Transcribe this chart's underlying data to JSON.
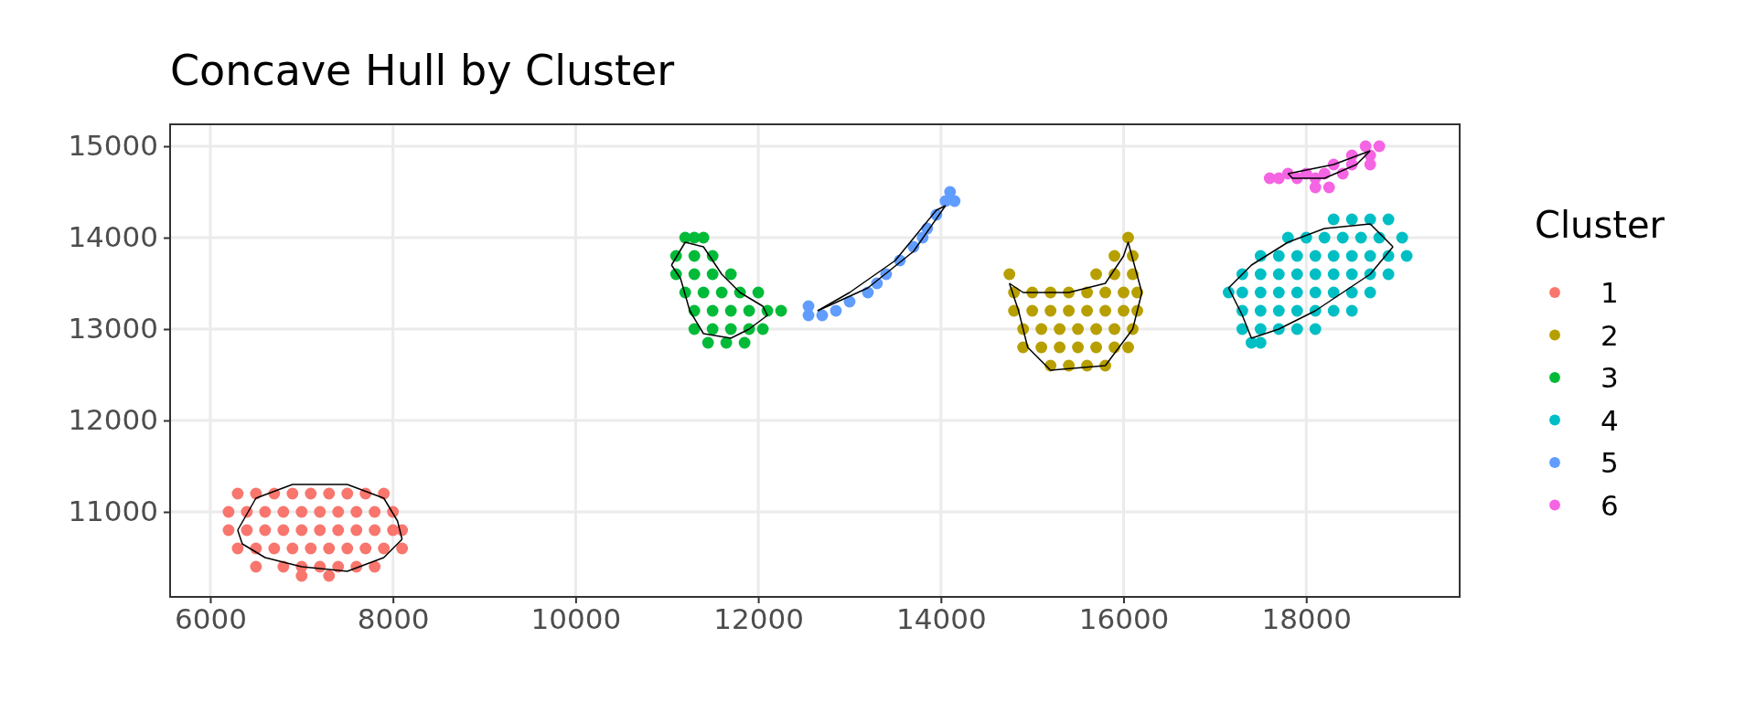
{
  "chart_data": {
    "type": "scatter",
    "title": "Concave Hull by Cluster",
    "legend_title": "Cluster",
    "legend": "right",
    "grid": true,
    "marker": "circle",
    "xlim": [
      5560,
      19680
    ],
    "ylim": [
      10070,
      15240
    ],
    "xticks": [
      6000,
      8000,
      10000,
      12000,
      14000,
      16000,
      18000
    ],
    "yticks": [
      11000,
      12000,
      13000,
      14000,
      15000
    ],
    "series": [
      {
        "name": "1",
        "color": "#f8766d",
        "x": [
          6300,
          6500,
          6700,
          6900,
          7100,
          7300,
          7500,
          7700,
          7900,
          6200,
          6400,
          6600,
          6800,
          7000,
          7200,
          7400,
          7600,
          7800,
          8000,
          6200,
          6400,
          6600,
          6800,
          7000,
          7200,
          7400,
          7600,
          7800,
          8000,
          8100,
          6300,
          6500,
          6700,
          6900,
          7100,
          7300,
          7500,
          7700,
          7900,
          8100,
          6500,
          6800,
          7000,
          7200,
          7400,
          7600,
          7800,
          7000,
          7300
        ],
        "values": [
          11200,
          11200,
          11200,
          11200,
          11200,
          11200,
          11200,
          11200,
          11200,
          11000,
          11000,
          11000,
          11000,
          11000,
          11000,
          11000,
          11000,
          11000,
          11000,
          10800,
          10800,
          10800,
          10800,
          10800,
          10800,
          10800,
          10800,
          10800,
          10800,
          10800,
          10600,
          10600,
          10600,
          10600,
          10600,
          10600,
          10600,
          10600,
          10600,
          10600,
          10400,
          10400,
          10400,
          10400,
          10400,
          10400,
          10400,
          10300,
          10300
        ]
      },
      {
        "name": "2",
        "color": "#b79f00",
        "x": [
          16050,
          15900,
          16100,
          14750,
          15700,
          15900,
          16100,
          14800,
          15000,
          15200,
          15400,
          15600,
          15800,
          16000,
          16150,
          14800,
          15000,
          15200,
          15400,
          15600,
          15800,
          16000,
          16150,
          14900,
          15100,
          15300,
          15500,
          15700,
          15900,
          16100,
          14900,
          15100,
          15300,
          15500,
          15700,
          15900,
          16050,
          15200,
          15400,
          15600,
          15800
        ],
        "values": [
          14000,
          13800,
          13800,
          13600,
          13600,
          13600,
          13600,
          13400,
          13400,
          13400,
          13400,
          13400,
          13400,
          13400,
          13400,
          13200,
          13200,
          13200,
          13200,
          13200,
          13200,
          13200,
          13200,
          13000,
          13000,
          13000,
          13000,
          13000,
          13000,
          13000,
          12800,
          12800,
          12800,
          12800,
          12800,
          12800,
          12800,
          12600,
          12600,
          12600,
          12600
        ]
      },
      {
        "name": "3",
        "color": "#00ba38",
        "x": [
          11200,
          11300,
          11400,
          11100,
          11300,
          11500,
          11100,
          11300,
          11500,
          11700,
          11200,
          11400,
          11600,
          11800,
          12000,
          11300,
          11500,
          11700,
          11900,
          12100,
          12250,
          11300,
          11500,
          11700,
          11900,
          12050,
          11450,
          11650,
          11850
        ],
        "values": [
          14000,
          14000,
          14000,
          13800,
          13800,
          13800,
          13600,
          13600,
          13600,
          13600,
          13400,
          13400,
          13400,
          13400,
          13400,
          13200,
          13200,
          13200,
          13200,
          13200,
          13200,
          13000,
          13000,
          13000,
          13000,
          13000,
          12850,
          12850,
          12850
        ]
      },
      {
        "name": "4",
        "color": "#00bfc4",
        "x": [
          18300,
          18500,
          18700,
          18900,
          17800,
          18000,
          18200,
          18400,
          18600,
          18800,
          19050,
          17500,
          17700,
          17900,
          18100,
          18300,
          18500,
          18700,
          18900,
          19100,
          17300,
          17500,
          17700,
          17900,
          18100,
          18300,
          18500,
          18700,
          18900,
          17150,
          17300,
          17500,
          17700,
          17900,
          18100,
          18300,
          18500,
          18700,
          17300,
          17500,
          17700,
          17900,
          18100,
          18300,
          18500,
          17300,
          17500,
          17700,
          17900,
          18100,
          17400,
          17500
        ],
        "values": [
          14200,
          14200,
          14200,
          14200,
          14000,
          14000,
          14000,
          14000,
          14000,
          14000,
          14000,
          13800,
          13800,
          13800,
          13800,
          13800,
          13800,
          13800,
          13800,
          13800,
          13600,
          13600,
          13600,
          13600,
          13600,
          13600,
          13600,
          13600,
          13600,
          13400,
          13400,
          13400,
          13400,
          13400,
          13400,
          13400,
          13400,
          13400,
          13200,
          13200,
          13200,
          13200,
          13200,
          13200,
          13200,
          13000,
          13000,
          13000,
          13000,
          13000,
          12850,
          12850
        ]
      },
      {
        "name": "5",
        "color": "#619cff",
        "x": [
          12550,
          12700,
          12850,
          13000,
          13200,
          13400,
          13550,
          13700,
          13850,
          13950,
          14050,
          14150,
          14100,
          12550,
          13300,
          13800
        ],
        "values": [
          13150,
          13150,
          13200,
          13300,
          13400,
          13600,
          13750,
          13900,
          14100,
          14250,
          14400,
          14400,
          14500,
          13250,
          13500,
          14000
        ]
      },
      {
        "name": "6",
        "color": "#f564e3",
        "x": [
          18650,
          18800,
          18500,
          18700,
          18300,
          18500,
          18700,
          17800,
          18000,
          18200,
          18400,
          17600,
          17700,
          17900,
          18100,
          18100,
          18250
        ],
        "values": [
          15000,
          15000,
          14900,
          14900,
          14800,
          14800,
          14800,
          14700,
          14700,
          14700,
          14700,
          14650,
          14650,
          14650,
          14650,
          14550,
          14550
        ]
      },
      {
        "type": "line",
        "marker": "none",
        "color": "#000000",
        "x": [
          6300,
          6500,
          6900,
          7500,
          7900,
          8050,
          8100
        ],
        "values": [
          10800,
          11150,
          11300,
          11300,
          11150,
          10900,
          10700
        ]
      },
      {
        "type": "line",
        "marker": "none",
        "color": "#000000",
        "x": [
          6300,
          6350,
          6600,
          7000,
          7500,
          7900,
          8100
        ],
        "values": [
          10800,
          10650,
          10500,
          10400,
          10350,
          10500,
          10700
        ]
      },
      {
        "type": "line",
        "marker": "none",
        "color": "#000000",
        "x": [
          11050,
          11200,
          11400,
          11600,
          11800,
          12050,
          12100
        ],
        "values": [
          13700,
          13950,
          13900,
          13600,
          13400,
          13250,
          13150
        ]
      },
      {
        "type": "line",
        "marker": "none",
        "color": "#000000",
        "x": [
          11050,
          11150,
          11250,
          11400,
          11700,
          11900,
          12100
        ],
        "values": [
          13700,
          13550,
          13200,
          12950,
          12900,
          13000,
          13150
        ]
      },
      {
        "type": "line",
        "marker": "none",
        "color": "#000000",
        "x": [
          12650,
          13000,
          13500,
          13950,
          14050
        ],
        "values": [
          13200,
          13400,
          13750,
          14300,
          14350
        ]
      },
      {
        "type": "line",
        "marker": "none",
        "color": "#000000",
        "x": [
          12650,
          13200,
          13700,
          14050
        ],
        "values": [
          13200,
          13450,
          13850,
          14350
        ]
      },
      {
        "type": "line",
        "marker": "none",
        "color": "#000000",
        "x": [
          14750,
          14900,
          15400,
          15800,
          16000,
          16050,
          16200
        ],
        "values": [
          13500,
          13400,
          13400,
          13500,
          13800,
          13950,
          13400
        ]
      },
      {
        "type": "line",
        "marker": "none",
        "color": "#000000",
        "x": [
          14750,
          14850,
          14950,
          15200,
          15800,
          16100,
          16200
        ],
        "values": [
          13500,
          13200,
          12800,
          12550,
          12600,
          13000,
          13400
        ]
      },
      {
        "type": "line",
        "marker": "none",
        "color": "#000000",
        "x": [
          17150,
          17400,
          17800,
          18200,
          18700,
          18950
        ],
        "values": [
          13450,
          13700,
          13950,
          14100,
          14150,
          13900
        ]
      },
      {
        "type": "line",
        "marker": "none",
        "color": "#000000",
        "x": [
          17150,
          17300,
          17400,
          17700,
          18100,
          18400,
          18700,
          18950
        ],
        "values": [
          13450,
          13150,
          12900,
          13000,
          13200,
          13400,
          13600,
          13900
        ]
      },
      {
        "type": "line",
        "marker": "none",
        "color": "#000000",
        "x": [
          17800,
          18300,
          18700
        ],
        "values": [
          14700,
          14800,
          14950
        ]
      },
      {
        "type": "line",
        "marker": "none",
        "color": "#000000",
        "x": [
          17800,
          17850,
          18200,
          18550,
          18700
        ],
        "values": [
          14700,
          14650,
          14650,
          14800,
          14950
        ]
      }
    ]
  }
}
